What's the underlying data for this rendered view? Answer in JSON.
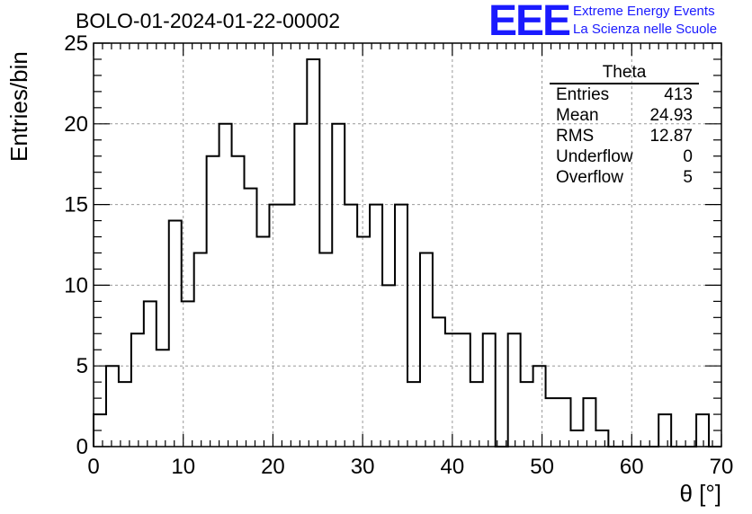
{
  "header": {
    "title": "BOLO-01-2024-01-22-00002",
    "logo_text": "EEE",
    "logo_line1": "Extreme Energy Events",
    "logo_line2": "La Scienza nelle Scuole",
    "logo_color": "#1a1aff"
  },
  "stats_box": {
    "title": "Theta",
    "rows": [
      {
        "label": "Entries",
        "value": "413"
      },
      {
        "label": "Mean",
        "value": "24.93"
      },
      {
        "label": "RMS",
        "value": "12.87"
      },
      {
        "label": "Underflow",
        "value": "0"
      },
      {
        "label": "Overflow",
        "value": "5"
      }
    ]
  },
  "chart_data": {
    "type": "bar",
    "style": "step-histogram",
    "xlabel": "θ [°]",
    "ylabel": "Entries/bin",
    "xlim": [
      0,
      70
    ],
    "ylim": [
      0,
      25
    ],
    "xticks": [
      0,
      10,
      20,
      30,
      40,
      50,
      60,
      70
    ],
    "yticks": [
      0,
      5,
      10,
      15,
      20,
      25
    ],
    "grid": true,
    "bin_width": 1.4,
    "values": [
      2,
      5,
      4,
      7,
      9,
      6,
      14,
      9,
      12,
      18,
      20,
      18,
      16,
      13,
      15,
      15,
      20,
      24,
      12,
      20,
      15,
      13,
      15,
      10,
      15,
      4,
      12,
      8,
      7,
      7,
      4,
      7,
      0,
      7,
      4,
      5,
      3,
      3,
      1,
      3,
      1,
      0,
      0,
      0,
      0,
      2,
      0,
      0,
      2,
      0
    ]
  }
}
